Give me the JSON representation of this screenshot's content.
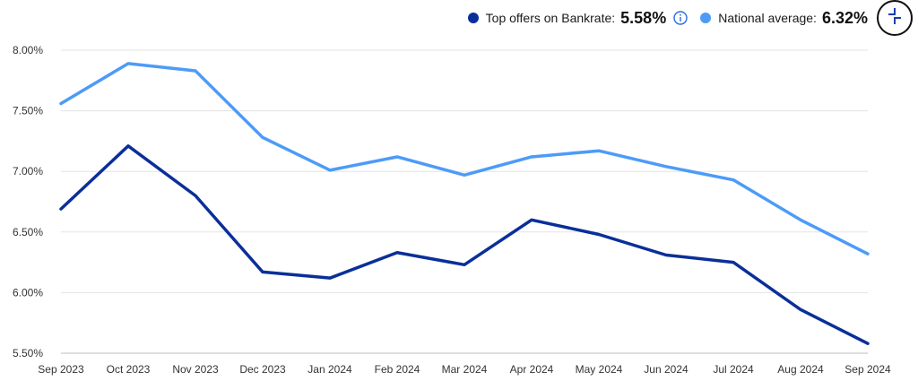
{
  "legend": {
    "top_offers": {
      "label": "Top offers on Bankrate:",
      "value": "5.58%",
      "color": "#0a2f99",
      "info_icon": "info-circle-icon"
    },
    "national": {
      "label": "National average:",
      "value": "6.32%",
      "color": "#4d9bf7"
    }
  },
  "zoom_button": {
    "icon": "zoom-crosshair-icon"
  },
  "chart_data": {
    "type": "line",
    "categories": [
      "Sep 2023",
      "Oct 2023",
      "Nov 2023",
      "Dec 2023",
      "Jan 2024",
      "Feb 2024",
      "Mar 2024",
      "Apr 2024",
      "May 2024",
      "Jun 2024",
      "Jul 2024",
      "Aug 2024",
      "Sep 2024"
    ],
    "series": [
      {
        "name": "National average",
        "color": "#4d9bf7",
        "values": [
          7.56,
          7.89,
          7.83,
          7.28,
          7.01,
          7.12,
          6.97,
          7.12,
          7.17,
          7.04,
          6.93,
          6.6,
          6.32
        ]
      },
      {
        "name": "Top offers on Bankrate",
        "color": "#0a2f99",
        "values": [
          6.69,
          7.21,
          6.8,
          6.17,
          6.12,
          6.33,
          6.23,
          6.6,
          6.48,
          6.31,
          6.25,
          5.86,
          5.58
        ]
      }
    ],
    "yticks": [
      "5.50%",
      "6.00%",
      "6.50%",
      "7.00%",
      "7.50%",
      "8.00%"
    ],
    "ylim": [
      5.5,
      8.0
    ],
    "grid": true
  }
}
